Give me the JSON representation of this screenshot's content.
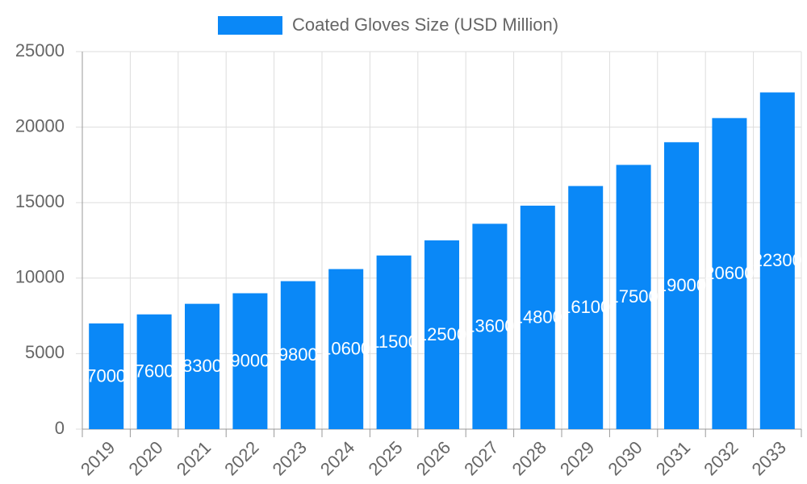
{
  "chart_data": {
    "type": "bar",
    "categories": [
      "2019",
      "2020",
      "2021",
      "2022",
      "2023",
      "2024",
      "2025",
      "2026",
      "2027",
      "2028",
      "2029",
      "2030",
      "2031",
      "2032",
      "2033"
    ],
    "series": [
      {
        "name": "Coated Gloves Size (USD Million)",
        "color": "#0a88f7",
        "values": [
          7000,
          7600,
          8300,
          9000,
          9800,
          10600,
          11500,
          12500,
          13600,
          14800,
          16100,
          17500,
          19000,
          20600,
          22300
        ]
      }
    ],
    "ylim": [
      0,
      25000
    ],
    "yticks": [
      0,
      5000,
      10000,
      15000,
      20000,
      25000
    ],
    "grid": true,
    "legend": "top"
  }
}
